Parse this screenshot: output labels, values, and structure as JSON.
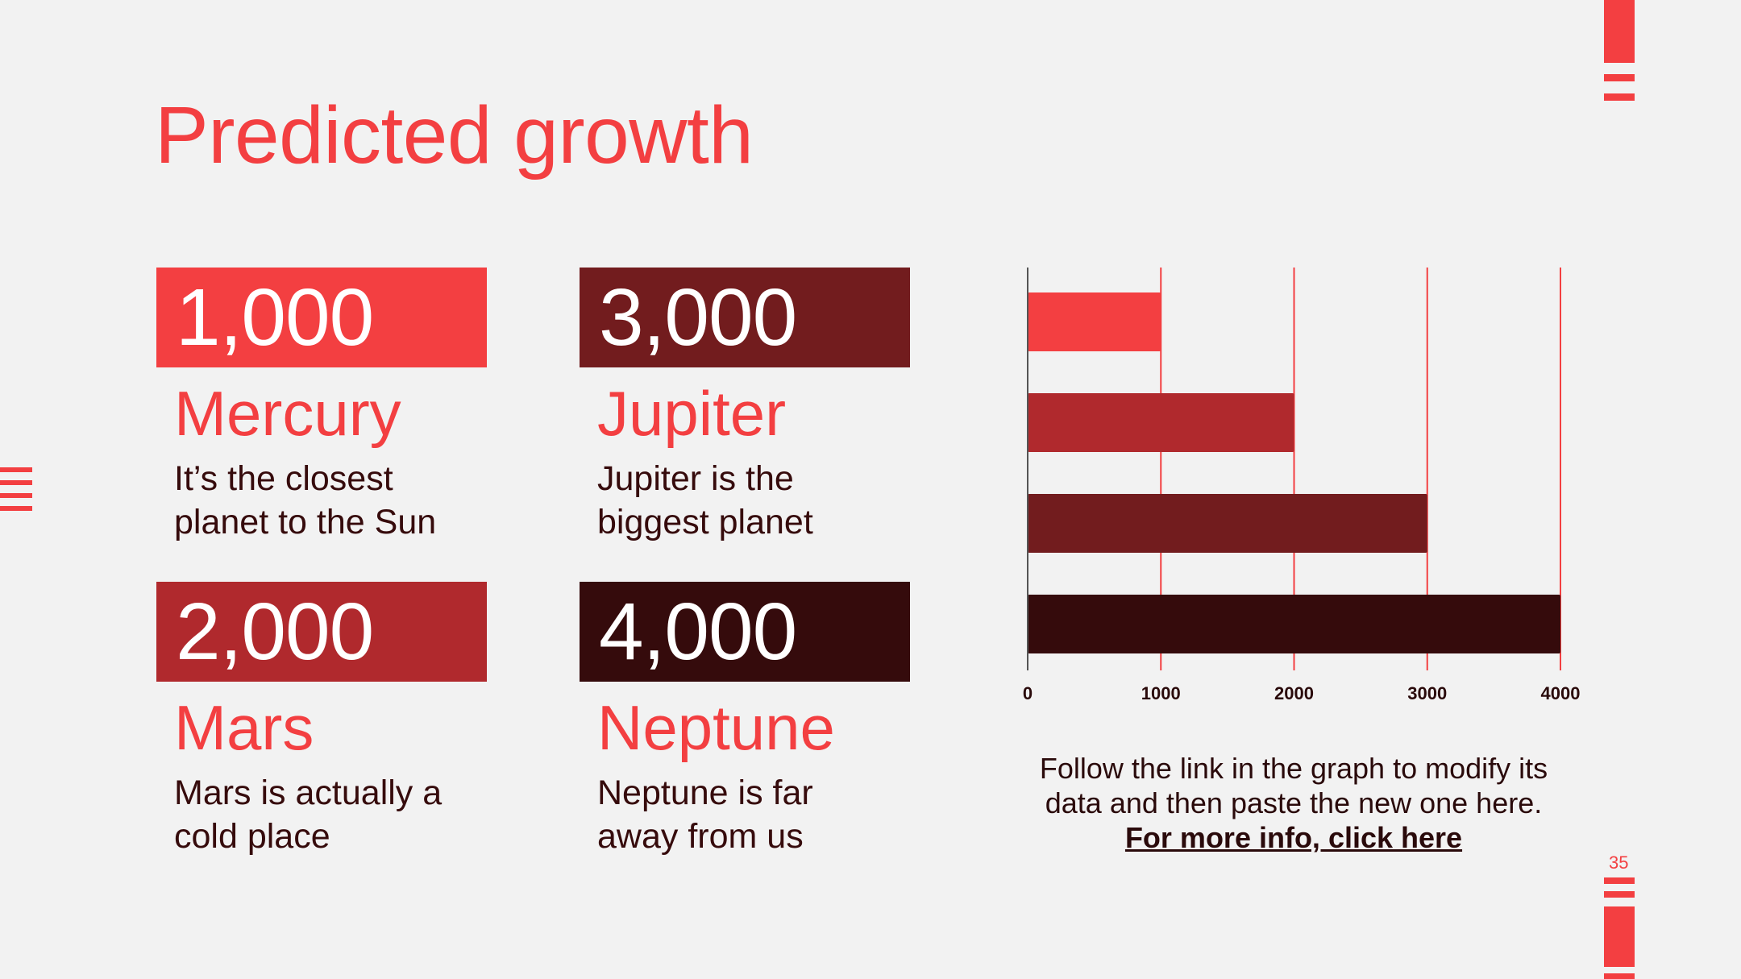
{
  "slide": {
    "title": "Predicted growth",
    "page_number": "35"
  },
  "cards": [
    {
      "value": "1,000",
      "name": "Mercury",
      "desc_line1": "It’s the closest",
      "desc_line2": "planet to the Sun",
      "color": "#f33f41"
    },
    {
      "value": "3,000",
      "name": "Jupiter",
      "desc_line1": "Jupiter is the",
      "desc_line2": "biggest planet",
      "color": "#721c1e"
    },
    {
      "value": "2,000",
      "name": "Mars",
      "desc_line1": "Mars is actually a",
      "desc_line2": "cold place",
      "color": "#b0292d"
    },
    {
      "value": "4,000",
      "name": "Neptune",
      "desc_line1": "Neptune is far",
      "desc_line2": "away from us",
      "color": "#350b0c"
    }
  ],
  "note": {
    "line1": "Follow the link in the graph to modify its",
    "line2": "data and then paste the new one here.",
    "link": "For more info, click here"
  },
  "chart_data": {
    "type": "bar",
    "orientation": "horizontal",
    "categories": [
      "Mercury",
      "Mars",
      "Jupiter",
      "Neptune"
    ],
    "values": [
      1000,
      2000,
      3000,
      4000
    ],
    "colors": [
      "#f33f41",
      "#b0292d",
      "#721c1e",
      "#350b0c"
    ],
    "xlim": [
      0,
      4000
    ],
    "xticks": [
      0,
      1000,
      2000,
      3000,
      4000
    ],
    "xtick_labels": [
      "0",
      "1000",
      "2000",
      "3000",
      "4000"
    ],
    "grid": true,
    "grid_color": "#f33f41",
    "title": "",
    "xlabel": "",
    "ylabel": ""
  }
}
